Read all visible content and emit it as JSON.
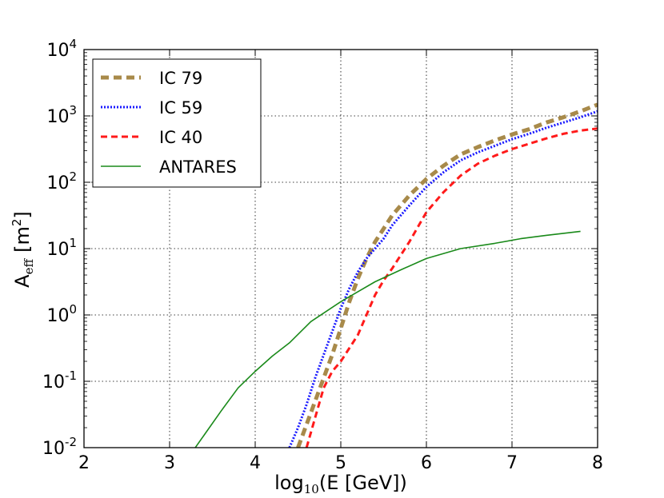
{
  "chart_data": {
    "type": "line",
    "title": "",
    "xlabel": {
      "base": "log",
      "sub": "10",
      "rest": "(E [GeV])"
    },
    "ylabel": {
      "base": "A",
      "sub": "eff",
      "rest": "[m",
      "sup": "2",
      "close": "]"
    },
    "xlim": [
      2,
      8
    ],
    "ylim_exponent": [
      -2,
      4
    ],
    "yscale": "log",
    "grid": true,
    "legend_position": "top-left",
    "x_ticks": [
      "2",
      "3",
      "4",
      "5",
      "6",
      "7",
      "8"
    ],
    "y_ticks": [
      {
        "base": "10",
        "exp": "-2"
      },
      {
        "base": "10",
        "exp": "-1"
      },
      {
        "base": "10",
        "exp": "0"
      },
      {
        "base": "10",
        "exp": "1"
      },
      {
        "base": "10",
        "exp": "2"
      },
      {
        "base": "10",
        "exp": "3"
      },
      {
        "base": "10",
        "exp": "4"
      }
    ],
    "series": [
      {
        "name": "IC 79",
        "color": "#a88a4a",
        "style": "thick-dash",
        "log10_x": [
          4.5,
          4.6,
          4.7,
          4.8,
          4.9,
          5.0,
          5.1,
          5.2,
          5.3,
          5.4,
          5.5,
          5.6,
          5.8,
          6.0,
          6.2,
          6.4,
          6.6,
          6.8,
          7.0,
          7.2,
          7.4,
          7.6,
          7.8,
          8.0
        ],
        "log10_y": [
          -2.0,
          -1.65,
          -1.3,
          -0.95,
          -0.6,
          -0.2,
          0.2,
          0.55,
          0.85,
          1.1,
          1.3,
          1.5,
          1.8,
          2.05,
          2.25,
          2.42,
          2.53,
          2.63,
          2.72,
          2.8,
          2.9,
          2.98,
          3.07,
          3.17
        ]
      },
      {
        "name": "IC 59",
        "color": "#1a1aff",
        "style": "dotted",
        "log10_x": [
          4.4,
          4.5,
          4.6,
          4.7,
          4.8,
          4.9,
          5.0,
          5.1,
          5.2,
          5.3,
          5.4,
          5.5,
          5.6,
          5.8,
          6.0,
          6.2,
          6.4,
          6.6,
          6.8,
          7.0,
          7.2,
          7.4,
          7.6,
          7.8,
          8.0
        ],
        "log10_y": [
          -2.0,
          -1.7,
          -1.35,
          -0.95,
          -0.6,
          -0.25,
          0.1,
          0.4,
          0.65,
          0.85,
          1.0,
          1.15,
          1.35,
          1.65,
          1.93,
          2.15,
          2.33,
          2.45,
          2.55,
          2.65,
          2.73,
          2.82,
          2.9,
          2.98,
          3.07
        ]
      },
      {
        "name": "IC 40",
        "color": "#ff1a1a",
        "style": "dashed",
        "log10_x": [
          4.6,
          4.7,
          4.8,
          4.9,
          5.0,
          5.1,
          5.2,
          5.3,
          5.4,
          5.5,
          5.6,
          5.8,
          6.0,
          6.2,
          6.4,
          6.6,
          6.8,
          7.0,
          7.2,
          7.4,
          7.6,
          7.8,
          8.0
        ],
        "log10_y": [
          -2.0,
          -1.55,
          -1.1,
          -0.85,
          -0.7,
          -0.5,
          -0.3,
          0.0,
          0.3,
          0.52,
          0.7,
          1.1,
          1.55,
          1.85,
          2.1,
          2.28,
          2.4,
          2.5,
          2.58,
          2.66,
          2.73,
          2.78,
          2.81
        ]
      },
      {
        "name": "ANTARES",
        "color": "#1a8a1a",
        "style": "solid",
        "log10_x": [
          3.3,
          3.6,
          3.8,
          4.0,
          4.2,
          4.4,
          4.65,
          5.0,
          5.2,
          5.4,
          5.7,
          6.0,
          6.4,
          6.8,
          7.1,
          7.4,
          7.8
        ],
        "log10_y": [
          -2.0,
          -1.45,
          -1.1,
          -0.85,
          -0.62,
          -0.42,
          -0.1,
          0.2,
          0.35,
          0.5,
          0.68,
          0.85,
          1.0,
          1.08,
          1.15,
          1.2,
          1.26
        ]
      }
    ]
  }
}
